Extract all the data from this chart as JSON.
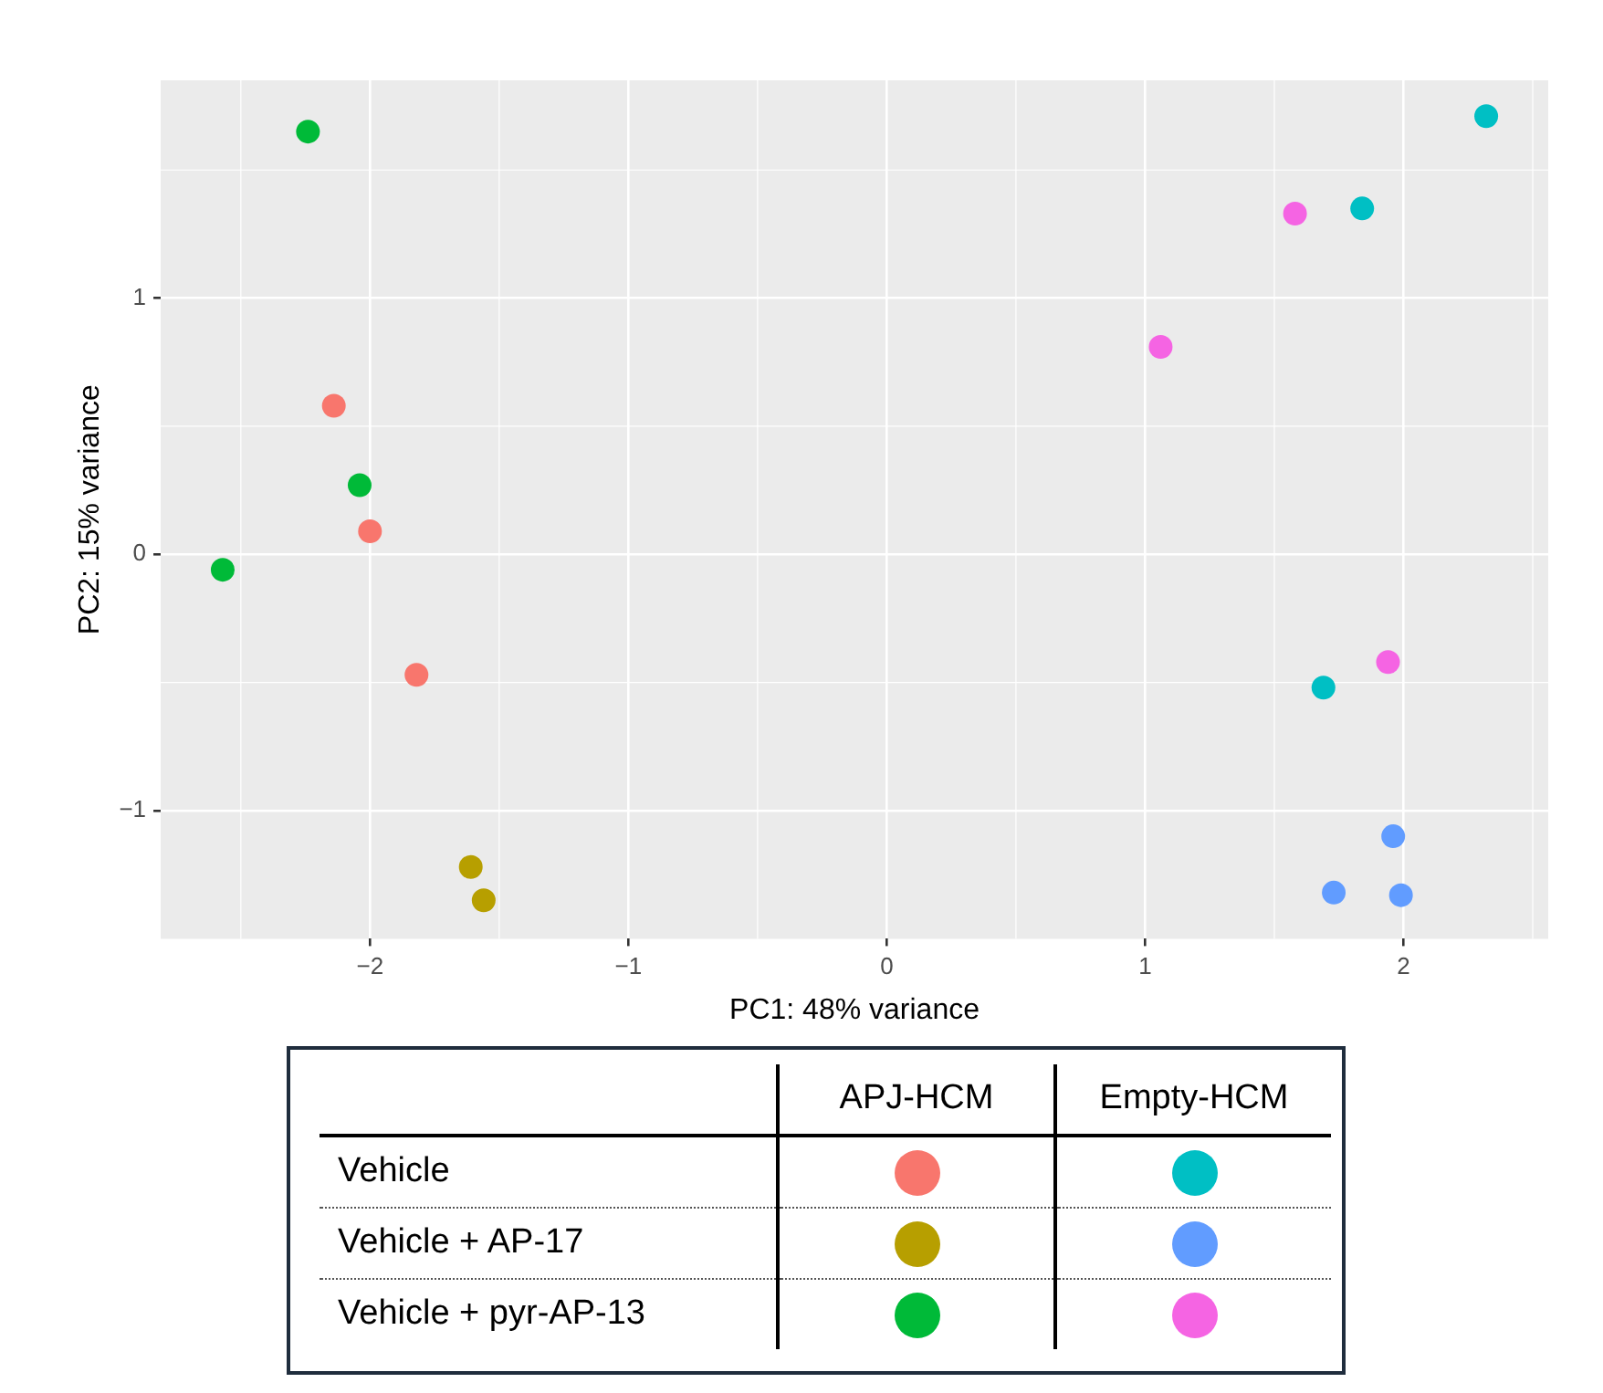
{
  "chart_data": {
    "type": "scatter",
    "xlabel": "PC1: 48% variance",
    "ylabel": "PC2: 15% variance",
    "xlim": [
      -2.81,
      2.56
    ],
    "xticks": [
      -2,
      -1,
      0,
      1,
      2
    ],
    "ylim": [
      -1.5,
      1.85
    ],
    "yticks": [
      -1,
      0,
      1
    ],
    "grid": true,
    "legend": false,
    "marker": "circle",
    "series": [
      {
        "color": "#f8766d",
        "x": [
          -2.14,
          -2.0,
          -1.82
        ],
        "values": [
          0.58,
          0.09,
          -0.47
        ]
      },
      {
        "color": "#b79f00",
        "x": [
          -1.61,
          -1.56
        ],
        "values": [
          -1.22,
          -1.35
        ]
      },
      {
        "color": "#00ba38",
        "x": [
          -2.24,
          -2.04,
          -2.57
        ],
        "values": [
          1.65,
          0.27,
          -0.06
        ]
      },
      {
        "color": "#00bfc4",
        "x": [
          2.32,
          1.84,
          1.69
        ],
        "values": [
          1.71,
          1.35,
          -0.52
        ]
      },
      {
        "color": "#619cff",
        "x": [
          1.96,
          1.73,
          1.99
        ],
        "values": [
          -1.1,
          -1.32,
          -1.33
        ]
      },
      {
        "color": "#f564e3",
        "x": [
          1.58,
          1.06,
          1.94
        ],
        "values": [
          1.33,
          0.81,
          -0.42
        ]
      }
    ],
    "annotations": [
      "APJ-HCM",
      "Empty-HCM",
      "Vehicle",
      "Vehicle + AP-17",
      "Vehicle + pyr-AP-13"
    ]
  }
}
